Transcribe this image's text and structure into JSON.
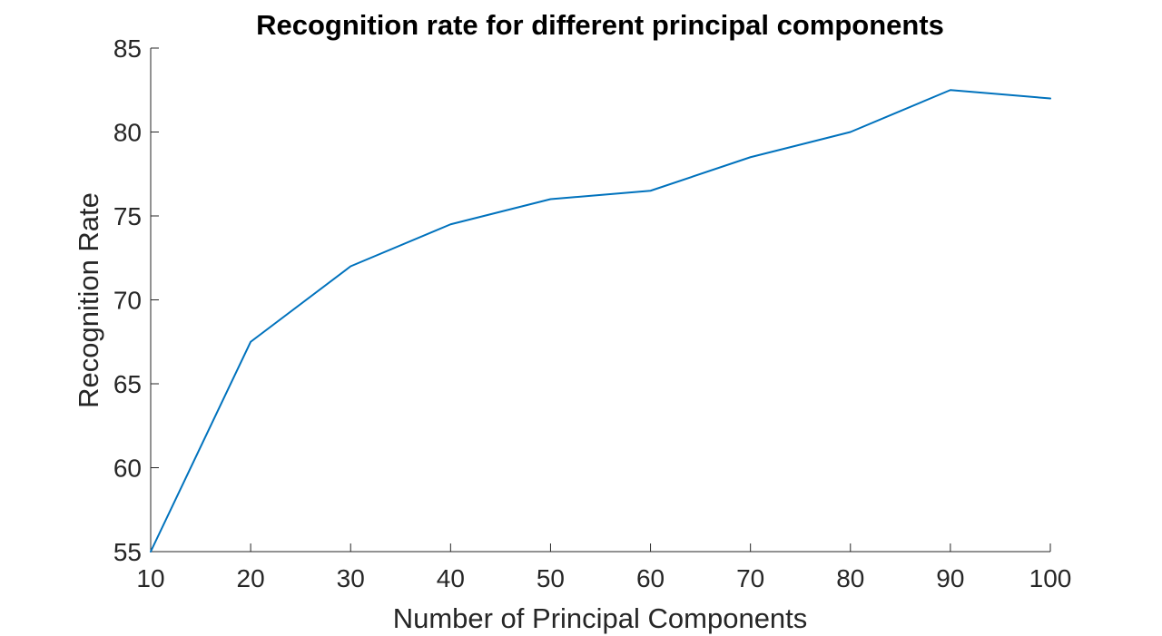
{
  "chart_data": {
    "type": "line",
    "title": "Recognition rate for different principal components",
    "xlabel": "Number of Principal Components",
    "ylabel": "Recognition Rate",
    "xlim": [
      10,
      100
    ],
    "ylim": [
      55,
      85
    ],
    "xticks": [
      10,
      20,
      30,
      40,
      50,
      60,
      70,
      80,
      90,
      100
    ],
    "yticks": [
      55,
      60,
      65,
      70,
      75,
      80,
      85
    ],
    "grid": false,
    "legend": "none",
    "series": [
      {
        "color": "#0072bd",
        "x": [
          10,
          20,
          30,
          40,
          50,
          60,
          70,
          80,
          90,
          100
        ],
        "y": [
          55,
          67.5,
          72,
          74.5,
          76,
          76.5,
          78.5,
          80,
          82.5,
          82
        ]
      }
    ]
  }
}
